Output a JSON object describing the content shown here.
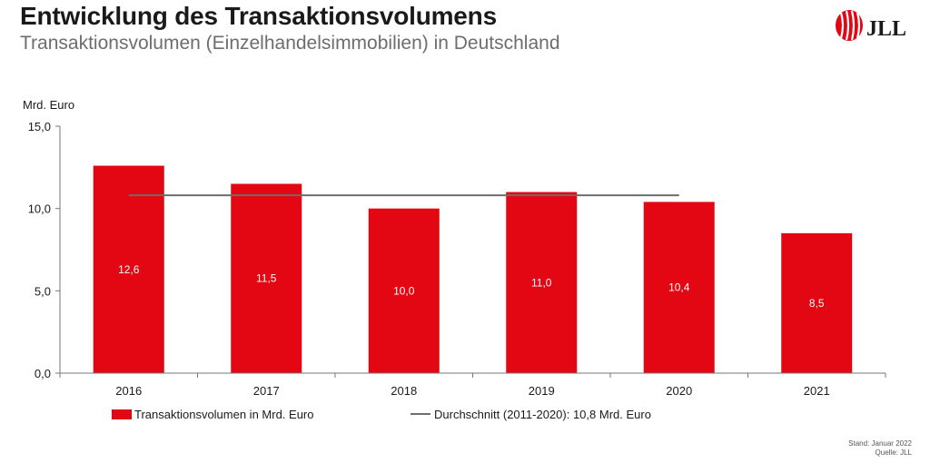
{
  "header": {
    "title": "Entwicklung des Transaktionsvolumens",
    "subtitle": "Transaktionsvolumen (Einzelhandelsimmobilien) in Deutschland"
  },
  "logo": {
    "text": "JLL",
    "color": "#e30613"
  },
  "footnote": {
    "stand": "Stand: Januar 2022",
    "quelle": "Quelle: JLL"
  },
  "chart_data": {
    "type": "bar",
    "title": "",
    "ylabel": "Mrd. Euro",
    "xlabel": "",
    "categories": [
      "2016",
      "2017",
      "2018",
      "2019",
      "2020",
      "2021"
    ],
    "series": [
      {
        "name": "Transaktionsvolumen in Mrd. Euro",
        "values": [
          12.6,
          11.5,
          10.0,
          11.0,
          10.4,
          8.5
        ],
        "value_labels": [
          "12,6",
          "11,5",
          "10,0",
          "11,0",
          "10,4",
          "8,5"
        ],
        "color": "#e30613"
      }
    ],
    "average_line": {
      "name": "Durchschnitt (2011-2020): 10,8 Mrd. Euro",
      "value": 10.8,
      "from_category": "2016",
      "to_category": "2020",
      "color": "#6d6d6d"
    },
    "ylim": [
      0,
      15
    ],
    "yticks": [
      0,
      5,
      10,
      15
    ],
    "ytick_labels": [
      "0,0",
      "5,0",
      "10,0",
      "15,0"
    ],
    "grid": false,
    "legend_position": "bottom"
  }
}
